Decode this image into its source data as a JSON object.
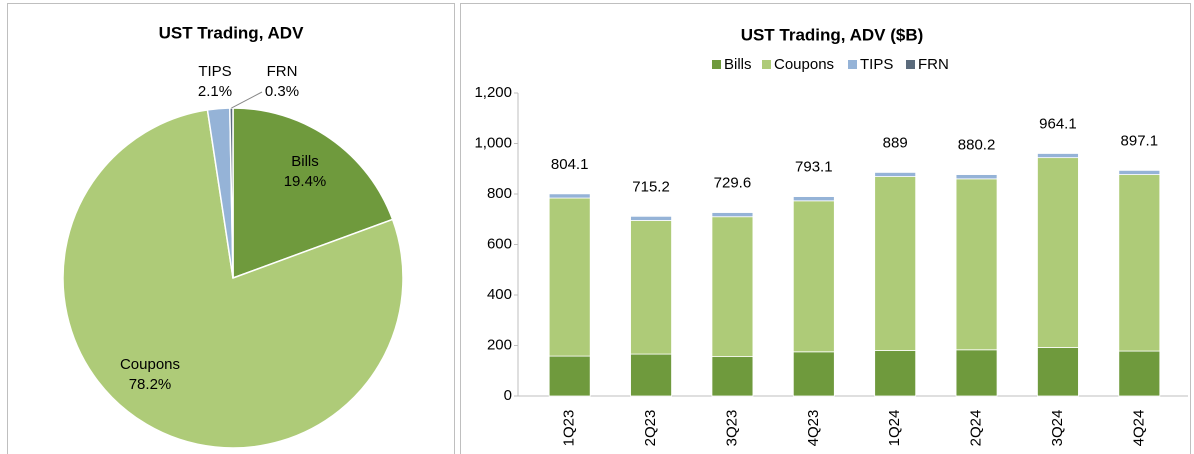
{
  "chart_data": [
    {
      "type": "pie",
      "title": "UST Trading, ADV",
      "categories": [
        "Bills",
        "Coupons",
        "TIPS",
        "FRN"
      ],
      "values": [
        19.4,
        78.2,
        2.1,
        0.3
      ],
      "value_labels": [
        "19.4%",
        "78.2%",
        "2.1%",
        "0.3%"
      ],
      "colors": [
        "#6f9a3d",
        "#aecb78",
        "#95b3d7",
        "#5b6b7c"
      ]
    },
    {
      "type": "bar",
      "stacked": true,
      "title": "UST Trading, ADV ($B)",
      "categories": [
        "1Q23",
        "2Q23",
        "3Q23",
        "4Q23",
        "1Q24",
        "2Q24",
        "3Q24",
        "4Q24"
      ],
      "series": [
        {
          "name": "Bills",
          "color": "#6f9a3d",
          "values": [
            158,
            166,
            156,
            175,
            180,
            183,
            192,
            178
          ]
        },
        {
          "name": "Coupons",
          "color": "#aecb78",
          "values": [
            626,
            529,
            554,
            598,
            689,
            677,
            752,
            699
          ]
        },
        {
          "name": "TIPS",
          "color": "#95b3d7",
          "values": [
            17,
            17,
            17,
            17,
            17,
            17,
            17,
            17
          ]
        },
        {
          "name": "FRN",
          "color": "#5b6b7c",
          "values": [
            3,
            3,
            3,
            3,
            3,
            3,
            3,
            3
          ]
        }
      ],
      "totals": [
        804.1,
        715.2,
        729.6,
        793.1,
        889.0,
        880.2,
        964.1,
        897.1
      ],
      "ylim": [
        0,
        1200
      ],
      "yticks": [
        0,
        200,
        400,
        600,
        800,
        {
          "value": 1000,
          "label": "1,000"
        },
        {
          "value": 1200,
          "label": "1,200"
        }
      ]
    }
  ]
}
